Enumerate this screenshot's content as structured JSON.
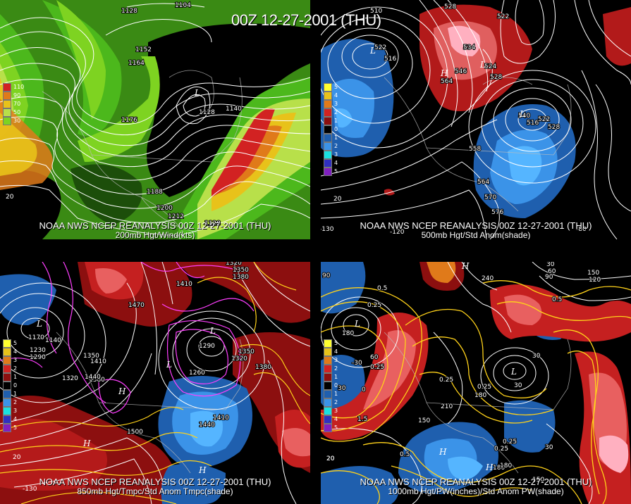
{
  "main_title": "00Z 12-27-2001 (THU)",
  "panels": [
    {
      "id": "p200",
      "line1": "NOAA NWS NCEP REANALYSIS 00Z 12-27-2001 (THU)",
      "line2": "200mb Hgt/Wind(kts)",
      "legend": [
        "110",
        "90",
        "70",
        "50",
        "30"
      ],
      "contour_labels": [
        "1104",
        "1128",
        "1152",
        "1164",
        "1176",
        "1128",
        "1140",
        "1188",
        "1200",
        "1212",
        "1128"
      ],
      "lon_labels": [
        "20"
      ],
      "highs_lows": [
        "L"
      ],
      "colors": [
        "#3a8a14",
        "#4cb81c",
        "#7ed321",
        "#b8e04a",
        "#e8c21a",
        "#e07a1a",
        "#d22222"
      ]
    },
    {
      "id": "p500",
      "line1": "NOAA NWS NCEP REANALYSIS 00Z 12-27-2001 (THU)",
      "line2": "500mb Hgt/Std Anom(shade)",
      "legend": [
        "5",
        "4",
        "3",
        "2",
        "1",
        "0",
        "1",
        "2",
        "3",
        "4",
        "5"
      ],
      "contour_labels": [
        "510",
        "528",
        "522",
        "522",
        "516",
        "534",
        "546",
        "524",
        "528",
        "564",
        "540",
        "516",
        "522",
        "528",
        "558",
        "564",
        "570",
        "576"
      ],
      "lon_labels": [
        "-130",
        "-120",
        "20",
        "-80"
      ],
      "highs_lows": [
        "L",
        "H",
        "L",
        "L"
      ],
      "colors": [
        "#1f5fae",
        "#3b93e8",
        "#b21a1a",
        "#e05f5f",
        "#ffb0c0"
      ]
    },
    {
      "id": "p850",
      "line1": "NOAA NWS NCEP REANALYSIS 00Z 12-27-2001 (THU)",
      "line2": "850mb Hgt/Tmpc/Std Anom Tmpc(shade)",
      "legend": [
        "5",
        "4",
        "3",
        "2",
        "1",
        "0",
        "1",
        "2",
        "3",
        "4",
        "5"
      ],
      "contour_labels": [
        "1320",
        "1350",
        "1380",
        "1410",
        "1470",
        "1170",
        "1140",
        "1230",
        "1290",
        "1350",
        "1410",
        "1380",
        "1440",
        "1320",
        "1290",
        "1260",
        "1320",
        "1350",
        "1380",
        "1410",
        "1440",
        "1500"
      ],
      "lon_labels": [
        "20",
        "-130"
      ],
      "highs_lows": [
        "L",
        "H",
        "L",
        "L",
        "H",
        "H"
      ],
      "colors": [
        "#8c0f0f",
        "#c52020",
        "#e86060",
        "#1f5fae",
        "#3b93e8",
        "#ff3fff",
        "#ffd21a"
      ]
    },
    {
      "id": "p1000",
      "line1": "NOAA NWS NCEP REANALYSIS 00Z 12-27-2001 (THU)",
      "line2": "1000mb Hgt/PW(inches)/Std Anom PW(shade)",
      "legend": [
        "5",
        "4",
        "3",
        "2",
        "1",
        "0",
        "1",
        "2",
        "3",
        "4",
        "5"
      ],
      "contour_labels": [
        "90",
        "0.5",
        "0.25",
        "240",
        "30",
        "60",
        "90",
        "150",
        "120",
        "0.5",
        "180",
        "-30",
        "60",
        "30",
        "0.25",
        "30",
        "0",
        "1.5",
        "0.25",
        "210",
        "180",
        "0.25",
        "30",
        "0.25",
        "150",
        "180",
        "0.5",
        "0.25",
        "180",
        "30",
        "150",
        "20"
      ],
      "lon_labels": [
        "20"
      ],
      "highs_lows": [
        "H",
        "L",
        "L",
        "H",
        "H"
      ],
      "colors": [
        "#1f5fae",
        "#3b93e8",
        "#c52020",
        "#e86060",
        "#ffd21a"
      ]
    }
  ],
  "legend_colors": [
    "#ffff30",
    "#e8c21a",
    "#e07a1a",
    "#d22222",
    "#8c0f0f",
    "#000000",
    "#1f5fae",
    "#3b93e8",
    "#1ae0e0",
    "#3030c0",
    "#8020c0"
  ]
}
